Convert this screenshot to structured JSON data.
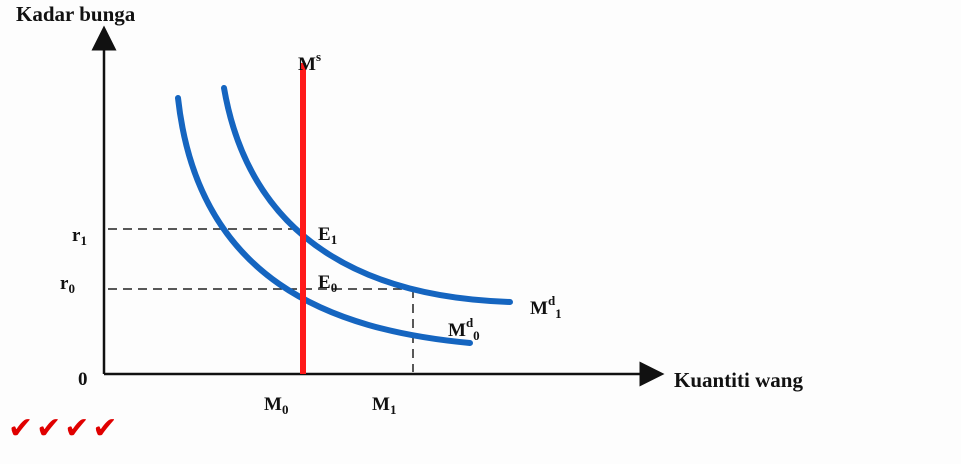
{
  "y_axis_title": "Kadar bunga",
  "x_axis_title": "Kuantiti wang",
  "origin_label": "0",
  "rates": {
    "r1": {
      "main": "r",
      "sub": "1"
    },
    "r0": {
      "main": "r",
      "sub": "0"
    }
  },
  "quantities": {
    "m0": {
      "main": "M",
      "sub": "0"
    },
    "m1": {
      "main": "M",
      "sub": "1"
    }
  },
  "money_supply": {
    "main": "M",
    "sup": "s"
  },
  "demand_curves": {
    "md1": {
      "main": "M",
      "sup": "d",
      "sub": "1"
    },
    "md0": {
      "main": "M",
      "sup": "d",
      "sub": "0"
    }
  },
  "equilibria": {
    "e1": {
      "main": "E",
      "sub": "1"
    },
    "e0": {
      "main": "E",
      "sub": "0"
    }
  },
  "checkmarks": "✔✔✔✔",
  "colors": {
    "supply": "#ff1a1a",
    "demand": "#1565c0",
    "axis": "#111111",
    "checks": "#e00000"
  }
}
